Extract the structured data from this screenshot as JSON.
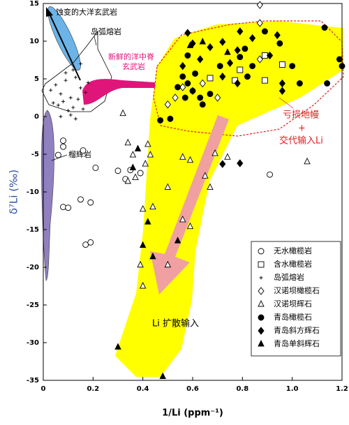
{
  "chart_data": {
    "type": "scatter",
    "x_label": "1/Li (ppm⁻¹)",
    "y_label": "δ⁷Li (‰)",
    "xlim": [
      0,
      1.2
    ],
    "ylim": [
      -35,
      15
    ],
    "xticks": [
      0,
      0.2,
      0.4,
      0.6,
      0.8,
      {
        "value": 1,
        "label": "1.0"
      },
      1.2
    ],
    "yticks": [
      -35,
      -30,
      -25,
      -20,
      -15,
      -10,
      -5,
      0,
      5,
      10,
      15
    ],
    "legend": "lower right",
    "annotations": [
      "蚀变的大洋玄武岩",
      "岛弧熔岩",
      "新鲜的洋中脊",
      "玄武岩",
      "榴辉岩",
      "亏损地幔",
      "+",
      "交代输入Li",
      "Li 扩散输入"
    ],
    "series": [
      {
        "name": "无水橄榄岩",
        "marker": "circle-open",
        "color": "#000000",
        "x": [
          0.08,
          0.08,
          0.06,
          0.16,
          0.21,
          0.3,
          0.35,
          0.33,
          0.39,
          0.15,
          0.08,
          0.1,
          0.19,
          0.17,
          0.19,
          0.91
        ],
        "y": [
          -3.2,
          -4,
          -5.1,
          -4.5,
          -6.8,
          -7.2,
          -7.1,
          -8.3,
          -7.5,
          -11,
          -12,
          -12.1,
          -11.4,
          -17,
          -16.7,
          -7.7
        ]
      },
      {
        "name": "含水橄榄岩",
        "marker": "square-open",
        "color": "#000000",
        "x": [
          0.89,
          0.89,
          0.77,
          0.96,
          0.79,
          0.67
        ],
        "y": [
          8.1,
          4.8,
          4.8,
          6.9,
          6.2,
          5.1
        ]
      },
      {
        "name": "岛弧熔岩",
        "marker": "plus",
        "color": "#000000",
        "x": [
          0.03,
          0.05,
          0.07,
          0.09,
          0.11,
          0.13,
          0.15,
          0.06,
          0.08,
          0.1,
          0.12,
          0.14,
          0.17,
          0.04,
          0.07,
          0.11,
          0.13,
          0.16,
          0.09,
          0.12,
          0.18,
          0.15
        ],
        "y": [
          3.5,
          4.2,
          3,
          4.8,
          2.5,
          5.2,
          3.8,
          1.5,
          2,
          0.8,
          1.2,
          2.3,
          3.2,
          1.8,
          0,
          0.2,
          -0.3,
          1,
          5.8,
          6.2,
          4.5,
          7
        ]
      },
      {
        "name": "汉诺坝橄榄石",
        "marker": "diamond-open",
        "color": "#000000",
        "x": [
          0.87,
          0.87,
          0.53,
          0.56,
          0.6,
          0.64,
          0.5,
          0.7,
          0.87
        ],
        "y": [
          14.8,
          12.4,
          2.5,
          3.9,
          3.4,
          4.4,
          1.6,
          2.5,
          7.6
        ]
      },
      {
        "name": "汉诺坝辉石",
        "marker": "triangle-open",
        "color": "#000000",
        "x": [
          0.32,
          0.34,
          0.42,
          0.43,
          0.41,
          0.56,
          0.59,
          0.69,
          0.65,
          0.74,
          0.67,
          0.5,
          0.44,
          0.4,
          0.56,
          0.59,
          0.5,
          0.4,
          0.39,
          0.37,
          1.06,
          0.36,
          0.34
        ],
        "y": [
          0.4,
          -3.5,
          -3.7,
          -5.1,
          -6.3,
          -5.4,
          -5.8,
          -4.9,
          -7.9,
          -5.4,
          -9.4,
          -9.4,
          -12,
          -12.3,
          -13.7,
          -14.6,
          -19.7,
          -22.5,
          -19.7,
          -8.1,
          -6,
          -5.1,
          -8.6
        ]
      },
      {
        "name": "青岛橄榄石",
        "marker": "circle",
        "color": "#000000",
        "x": [
          0.56,
          0.58,
          0.6,
          0.61,
          0.63,
          0.64,
          0.57,
          0.67,
          0.54,
          0.58,
          0.79,
          0.82,
          0.84,
          1.0,
          1.03,
          1.13,
          1.14,
          1.2,
          1.19,
          0.47,
          0.51,
          0.81,
          0.71,
          0.95,
          0.89
        ],
        "y": [
          5.3,
          4.4,
          3.4,
          5.7,
          2.5,
          1.6,
          2.5,
          3,
          3.9,
          8.1,
          7.9,
          5.3,
          6.7,
          6.7,
          4.4,
          11.8,
          4.4,
          6.7,
          7.6,
          -0.5,
          -0.3,
          9,
          6.7,
          9.7,
          11.3
        ]
      },
      {
        "name": "青岛斜方辉石",
        "marker": "diamond",
        "color": "#000000",
        "x": [
          0.79,
          0.58,
          0.6,
          0.67,
          0.72,
          0.78,
          0.84,
          0.91,
          0.78,
          0.72,
          0.75,
          0.94,
          0.96,
          0.56,
          0.63,
          0.96,
          0.72,
          0.79
        ],
        "y": [
          11.3,
          11.1,
          9.7,
          9.2,
          9.9,
          8.8,
          10.4,
          8.1,
          4.4,
          5.3,
          7.1,
          10.8,
          3.4,
          6.7,
          7.6,
          4.4,
          -6.3,
          -6.2
        ]
      },
      {
        "name": "青岛单斜辉石",
        "marker": "triangle",
        "color": "#000000",
        "x": [
          0.59,
          0.64,
          0.74,
          0.38,
          0.36,
          0.42,
          0.4,
          0.44,
          0.54,
          0.3,
          0.48
        ],
        "y": [
          9.4,
          9.9,
          8.5,
          -4.3,
          -6.8,
          -14,
          -17.1,
          -18.6,
          -16.5,
          -30.6,
          -34.5
        ]
      }
    ]
  }
}
